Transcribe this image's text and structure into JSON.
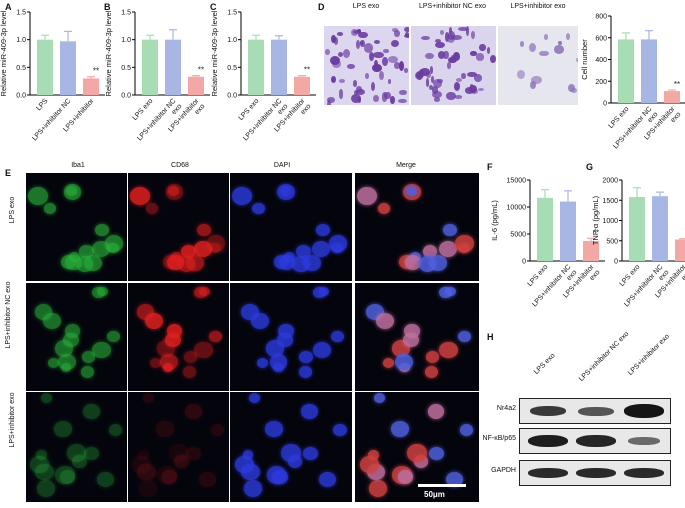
{
  "panel_labels": {
    "A": "A",
    "B": "B",
    "C": "C",
    "D": "D",
    "E": "E",
    "F": "F",
    "G": "G",
    "H": "H"
  },
  "colors": {
    "green": "#a7dcb5",
    "blue": "#a8b6e4",
    "pink": "#f2a9a5",
    "error": "#666666"
  },
  "chart_data": [
    {
      "id": "A",
      "type": "bar",
      "categories": [
        "LPS",
        "LPS+inhibitor NC",
        "LPS+inhibitor"
      ],
      "values": [
        1.0,
        0.97,
        0.3
      ],
      "errors": [
        0.08,
        0.18,
        0.03
      ],
      "ylabel": "Relative miR-409-3p level",
      "ylim": [
        0,
        1.5
      ],
      "yticks": [
        "0.0",
        "0.5",
        "1.0",
        "1.5"
      ],
      "significance": [
        "",
        "",
        "**"
      ]
    },
    {
      "id": "B",
      "type": "bar",
      "categories": [
        "LPS exo",
        "LPS+inhibitor NC exo",
        "LPS+inhibitor exo"
      ],
      "values": [
        1.0,
        1.0,
        0.33
      ],
      "errors": [
        0.08,
        0.18,
        0.02
      ],
      "ylabel": "Relative miR-409-3p level",
      "ylim": [
        0,
        1.5
      ],
      "yticks": [
        "0.0",
        "0.5",
        "1.0",
        "1.5"
      ],
      "significance": [
        "",
        "",
        "**"
      ]
    },
    {
      "id": "C",
      "type": "bar",
      "categories": [
        "LPS exo",
        "LPS+inhibitor NC exo",
        "LPS+inhibitor exo"
      ],
      "values": [
        1.0,
        1.0,
        0.33
      ],
      "errors": [
        0.08,
        0.07,
        0.02
      ],
      "ylabel": "Relative miR-409-3p level",
      "ylim": [
        0,
        1.5
      ],
      "yticks": [
        "0.0",
        "0.5",
        "1.0",
        "1.5"
      ],
      "significance": [
        "",
        "",
        "**"
      ]
    },
    {
      "id": "D",
      "type": "bar",
      "categories": [
        "LPS exo",
        "LPS+inhibitor NC exo",
        "LPS+inhibitor exo"
      ],
      "values": [
        585,
        585,
        110
      ],
      "errors": [
        60,
        80,
        10
      ],
      "ylabel": "Cell number",
      "ylim": [
        0,
        800
      ],
      "yticks": [
        "0",
        "200",
        "400",
        "600",
        "800"
      ],
      "significance": [
        "",
        "",
        "**"
      ]
    },
    {
      "id": "F",
      "type": "bar",
      "categories": [
        "LPS exo",
        "LPS+inhibitor NC exo",
        "LPS+inhibitor exo"
      ],
      "values": [
        11700,
        11000,
        3700
      ],
      "errors": [
        1500,
        2000,
        500
      ],
      "ylabel": "IL-6 (pg/mL)",
      "ylim": [
        0,
        15000
      ],
      "yticks": [
        "0",
        "5000",
        "10000",
        "15000"
      ],
      "significance": [
        "",
        "",
        "**"
      ]
    },
    {
      "id": "G",
      "type": "bar",
      "categories": [
        "LPS exo",
        "LPS+inhibitor NC exo",
        "LPS+inhibitor exo"
      ],
      "values": [
        1580,
        1600,
        530
      ],
      "errors": [
        230,
        100,
        20
      ],
      "ylabel": "TNF-α (pg/mL)",
      "ylim": [
        0,
        2000
      ],
      "yticks": [
        "0",
        "500",
        "1000",
        "1500",
        "2000"
      ],
      "significance": [
        "",
        "",
        "**"
      ]
    }
  ],
  "transwell": {
    "titles": [
      "LPS exo",
      "LPS+inhibitor NC exo",
      "LPS+inhibitor exo"
    ]
  },
  "microscopy": {
    "channels": [
      "Iba1",
      "CD68",
      "DAPI",
      "Merge"
    ],
    "rows": [
      "LPS exo",
      "LPS+inhibitor NC exo",
      "LPS+inhibitor exo"
    ],
    "scale_bar": "50μm"
  },
  "western_blot": {
    "lanes": [
      "LPS exo",
      "LPS+inhibitor NC exo",
      "LPS+inhibitor exo"
    ],
    "proteins": [
      "Nr4a2",
      "NF-κB/p65",
      "GAPDH"
    ]
  }
}
